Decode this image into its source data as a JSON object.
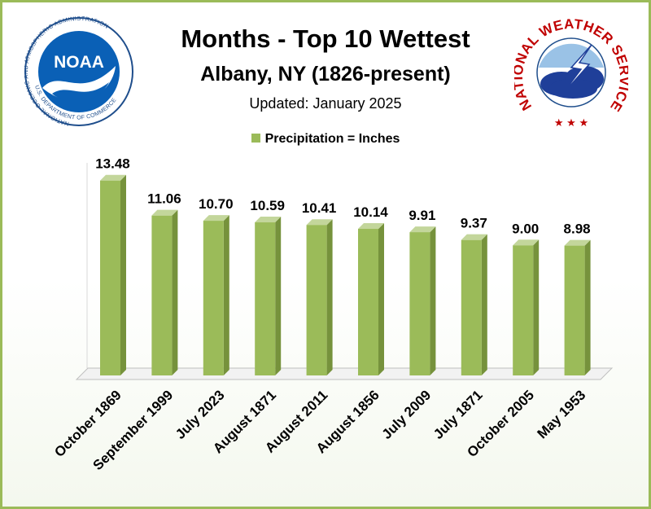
{
  "header": {
    "title": "Months - Top 10 Wettest",
    "subtitle": "Albany, NY (1826-present)",
    "updated": "Updated:  January 2025"
  },
  "logos": {
    "noaa": {
      "center_text": "NOAA",
      "ring_text": "NATIONAL OCEANIC AND ATMOSPHERIC ADMINISTRATION",
      "bottom_text": "U.S. DEPARTMENT OF COMMERCE"
    },
    "nws": {
      "ring_text": "NATIONAL WEATHER SERVICE"
    }
  },
  "legend": {
    "label": "Precipitation = Inches"
  },
  "colors": {
    "bar_front": "#9bbb59",
    "bar_side": "#76923c",
    "bar_top": "#c3d69b",
    "border": "#9bbb59"
  },
  "chart_data": {
    "type": "bar",
    "title": "Months - Top 10 Wettest",
    "categories": [
      "October 1869",
      "September 1999",
      "July 2023",
      "August 1871",
      "August 2011",
      "August 1856",
      "July 2009",
      "July 1871",
      "October 2005",
      "May 1953"
    ],
    "series": [
      {
        "name": "Precipitation = Inches",
        "values": [
          13.48,
          11.06,
          10.7,
          10.59,
          10.41,
          10.14,
          9.91,
          9.37,
          9.0,
          8.98
        ]
      }
    ],
    "data_labels": [
      "13.48",
      "11.06",
      "10.70",
      "10.59",
      "10.41",
      "10.14",
      "9.91",
      "9.37",
      "9.00",
      "8.98"
    ],
    "xlabel": "",
    "ylabel": "",
    "ylim": [
      0,
      16
    ],
    "grid": false,
    "legend_position": "top-center"
  }
}
